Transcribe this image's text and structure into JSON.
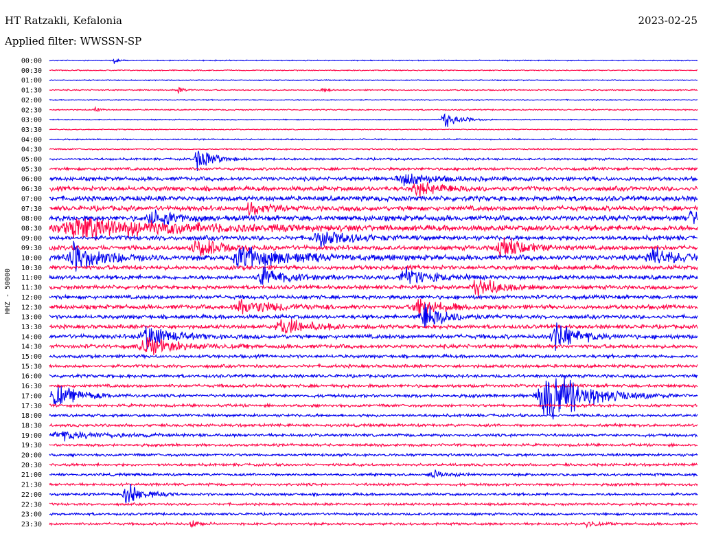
{
  "header": {
    "station": "HT Ratzakli, Kefalonia",
    "date": "2023-02-25",
    "filter": "Applied filter: WWSSN-SP"
  },
  "chart_data": {
    "type": "line",
    "ylabel": "HHZ - 50000",
    "colors": [
      "#0000ee",
      "#ff0044"
    ],
    "rows": [
      "00:00",
      "00:30",
      "01:00",
      "01:30",
      "02:00",
      "02:30",
      "03:00",
      "03:30",
      "04:00",
      "04:30",
      "05:00",
      "05:30",
      "06:00",
      "06:30",
      "07:00",
      "07:30",
      "08:00",
      "08:30",
      "09:00",
      "09:30",
      "10:00",
      "10:30",
      "11:00",
      "11:30",
      "12:00",
      "12:30",
      "13:00",
      "13:30",
      "14:00",
      "14:30",
      "15:00",
      "15:30",
      "16:00",
      "16:30",
      "17:00",
      "17:30",
      "18:00",
      "18:30",
      "19:00",
      "19:30",
      "20:00",
      "20:30",
      "21:00",
      "21:30",
      "22:00",
      "22:30",
      "23:00",
      "23:30"
    ],
    "row_color_cycle": "alternating blue/red",
    "noise_levels": [
      0.6,
      0.6,
      0.6,
      0.7,
      0.6,
      0.7,
      0.6,
      0.6,
      0.7,
      0.8,
      1.2,
      1.6,
      2.2,
      2.6,
      2.8,
      2.8,
      3.0,
      3.2,
      2.6,
      2.6,
      3.0,
      2.4,
      2.4,
      2.2,
      2.2,
      2.4,
      2.2,
      2.2,
      2.4,
      2.2,
      1.8,
      1.8,
      1.8,
      1.8,
      1.8,
      1.6,
      1.6,
      1.6,
      1.6,
      1.5,
      1.5,
      1.5,
      1.5,
      1.5,
      1.5,
      1.4,
      1.4,
      1.4
    ],
    "events": [
      {
        "row": "00:00",
        "x": 0.1,
        "amp": 4,
        "dur": 0.006
      },
      {
        "row": "01:30",
        "x": 0.2,
        "amp": 6,
        "dur": 0.008
      },
      {
        "row": "01:30",
        "x": 0.42,
        "amp": 4,
        "dur": 0.008
      },
      {
        "row": "02:30",
        "x": 0.07,
        "amp": 4,
        "dur": 0.006
      },
      {
        "row": "03:00",
        "x": 0.61,
        "amp": 12,
        "dur": 0.02
      },
      {
        "row": "05:00",
        "x": 0.23,
        "amp": 18,
        "dur": 0.02
      },
      {
        "row": "06:00",
        "x": 0.55,
        "amp": 9,
        "dur": 0.04
      },
      {
        "row": "06:30",
        "x": 0.57,
        "amp": 9,
        "dur": 0.04
      },
      {
        "row": "07:30",
        "x": 0.31,
        "amp": 10,
        "dur": 0.02
      },
      {
        "row": "08:00",
        "x": 0.16,
        "amp": 12,
        "dur": 0.03
      },
      {
        "row": "08:00",
        "x": 0.99,
        "amp": 12,
        "dur": 0.01
      },
      {
        "row": "08:30",
        "x": 0.05,
        "amp": 16,
        "dur": 0.12
      },
      {
        "row": "09:00",
        "x": 0.42,
        "amp": 12,
        "dur": 0.04
      },
      {
        "row": "09:30",
        "x": 0.23,
        "amp": 14,
        "dur": 0.03
      },
      {
        "row": "09:30",
        "x": 0.7,
        "amp": 14,
        "dur": 0.03
      },
      {
        "row": "10:00",
        "x": 0.04,
        "amp": 20,
        "dur": 0.04
      },
      {
        "row": "10:00",
        "x": 0.3,
        "amp": 16,
        "dur": 0.06
      },
      {
        "row": "10:00",
        "x": 0.93,
        "amp": 16,
        "dur": 0.03
      },
      {
        "row": "11:00",
        "x": 0.33,
        "amp": 14,
        "dur": 0.03
      },
      {
        "row": "11:00",
        "x": 0.55,
        "amp": 14,
        "dur": 0.03
      },
      {
        "row": "11:30",
        "x": 0.66,
        "amp": 14,
        "dur": 0.03
      },
      {
        "row": "12:30",
        "x": 0.3,
        "amp": 12,
        "dur": 0.04
      },
      {
        "row": "12:30",
        "x": 0.57,
        "amp": 14,
        "dur": 0.03
      },
      {
        "row": "13:00",
        "x": 0.58,
        "amp": 20,
        "dur": 0.03
      },
      {
        "row": "13:30",
        "x": 0.36,
        "amp": 12,
        "dur": 0.04
      },
      {
        "row": "14:00",
        "x": 0.15,
        "amp": 18,
        "dur": 0.03
      },
      {
        "row": "14:00",
        "x": 0.78,
        "amp": 20,
        "dur": 0.03
      },
      {
        "row": "14:30",
        "x": 0.15,
        "amp": 14,
        "dur": 0.04
      },
      {
        "row": "17:00",
        "x": 0.01,
        "amp": 16,
        "dur": 0.03
      },
      {
        "row": "17:00",
        "x": 0.77,
        "amp": 40,
        "dur": 0.05
      },
      {
        "row": "19:00",
        "x": 0.02,
        "amp": 6,
        "dur": 0.06
      },
      {
        "row": "21:00",
        "x": 0.59,
        "amp": 6,
        "dur": 0.02
      },
      {
        "row": "22:00",
        "x": 0.12,
        "amp": 16,
        "dur": 0.02
      },
      {
        "row": "23:30",
        "x": 0.22,
        "amp": 6,
        "dur": 0.01
      },
      {
        "row": "23:30",
        "x": 0.83,
        "amp": 6,
        "dur": 0.01
      }
    ]
  }
}
